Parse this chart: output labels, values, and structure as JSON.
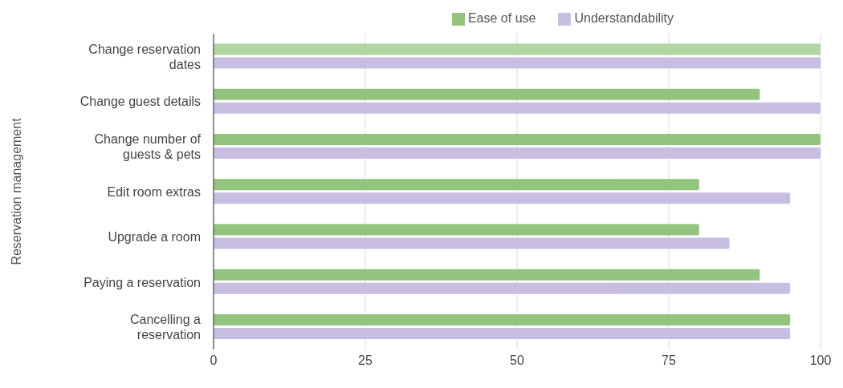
{
  "chart_data": {
    "type": "bar",
    "orientation": "horizontal",
    "ylabel": "Reservation management",
    "categories": [
      "Change reservation dates",
      "Change guest details",
      "Change number of guests & pets",
      "Edit room extras",
      "Upgrade a room",
      "Paying a reservation",
      "Cancelling a reservation"
    ],
    "series": [
      {
        "name": "Ease of use",
        "color": "#93c47d",
        "colors": [
          "#b0d6a2",
          "#93c47d",
          "#93c47d",
          "#93c47d",
          "#93c47d",
          "#93c47d",
          "#93c47d"
        ],
        "values": [
          100,
          90,
          100,
          80,
          80,
          90,
          95
        ]
      },
      {
        "name": "Understandability",
        "color": "#c8bee2",
        "values": [
          100,
          100,
          100,
          95,
          85,
          95,
          95
        ]
      }
    ],
    "xlim": [
      0,
      100
    ],
    "xticks": [
      0,
      25,
      50,
      75,
      100
    ],
    "grid": "x",
    "legend": "top"
  }
}
